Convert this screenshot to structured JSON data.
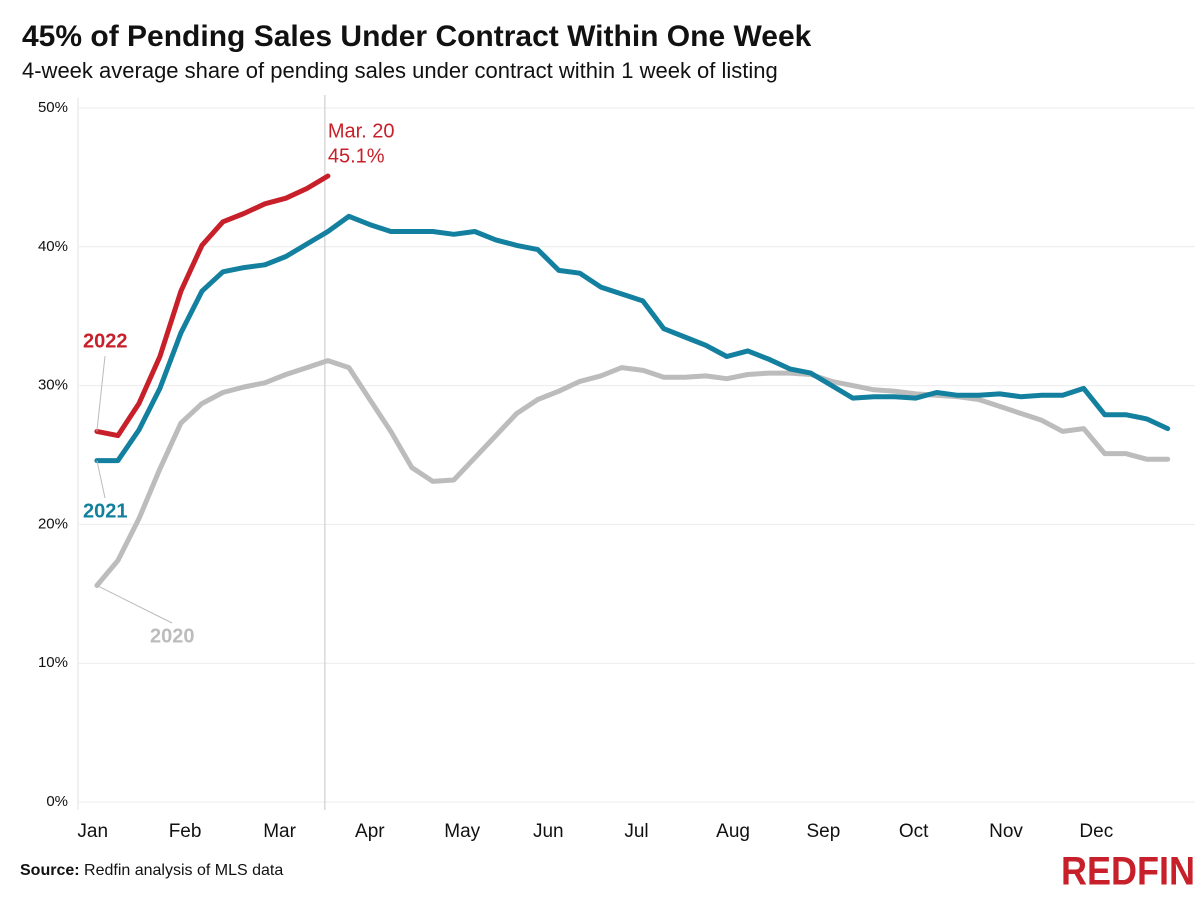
{
  "chart_data": {
    "type": "line",
    "title": "45% of Pending Sales Under Contract Within One Week",
    "subtitle": "4-week average share of pending sales under contract within 1 week of listing",
    "source_label": "Source:",
    "source": "Redfin analysis of MLS data",
    "logo": "REDFIN",
    "annotation": "Mar. 20",
    "x": [
      1,
      2,
      3,
      4,
      5,
      6,
      7,
      8,
      9,
      10,
      11,
      12,
      13,
      14,
      15,
      16,
      17,
      18,
      19,
      20,
      21,
      22,
      23,
      24,
      25,
      26,
      27,
      28,
      29,
      30,
      31,
      32,
      33,
      34,
      35,
      36,
      37,
      38,
      39,
      40,
      41,
      42,
      43,
      44,
      45,
      46,
      47,
      48,
      49,
      50,
      51,
      52
    ],
    "xlim": [
      0.1,
      53.3
    ],
    "xticks": [
      {
        "value": 0.8,
        "label": "Jan"
      },
      {
        "value": 5.2,
        "label": "Feb"
      },
      {
        "value": 9.7,
        "label": "Mar"
      },
      {
        "value": 14.0,
        "label": "Apr"
      },
      {
        "value": 18.4,
        "label": "May"
      },
      {
        "value": 22.5,
        "label": "Jun"
      },
      {
        "value": 26.7,
        "label": "Jul"
      },
      {
        "value": 31.3,
        "label": "Aug"
      },
      {
        "value": 35.6,
        "label": "Sep"
      },
      {
        "value": 39.9,
        "label": "Oct"
      },
      {
        "value": 44.3,
        "label": "Nov"
      },
      {
        "value": 48.6,
        "label": "Dec"
      }
    ],
    "ylim": [
      0,
      50
    ],
    "yticks": [
      {
        "value": 0,
        "label": "0%"
      },
      {
        "value": 10,
        "label": "10%"
      },
      {
        "value": 20,
        "label": "20%"
      },
      {
        "value": 30,
        "label": "30%"
      },
      {
        "value": 40,
        "label": "40%"
      },
      {
        "value": 50,
        "label": "50%"
      }
    ],
    "grid": true,
    "series": [
      {
        "name": "2022",
        "color": "#c8202a",
        "values": [
          26.7,
          26.4,
          28.7,
          32.1,
          36.8,
          40.1,
          41.8,
          42.4,
          43.1,
          43.5,
          44.2,
          45.1,
          null,
          null,
          null,
          null,
          null,
          null,
          null,
          null,
          null,
          null,
          null,
          null,
          null,
          null,
          null,
          null,
          null,
          null,
          null,
          null,
          null,
          null,
          null,
          null,
          null,
          null,
          null,
          null,
          null,
          null,
          null,
          null,
          null,
          null,
          null,
          null,
          null,
          null,
          null,
          null
        ],
        "value_labels": [
          null,
          null,
          null,
          null,
          null,
          null,
          null,
          null,
          null,
          null,
          null,
          "45.1%",
          null,
          null,
          null,
          null,
          null,
          null,
          null,
          null,
          null,
          null,
          null,
          null,
          null,
          null,
          null,
          null,
          null,
          null,
          null,
          null,
          null,
          null,
          null,
          null,
          null,
          null,
          null,
          null,
          null,
          null,
          null,
          null,
          null,
          null,
          null,
          null,
          null,
          null,
          null,
          null
        ]
      },
      {
        "name": "2021",
        "color": "#13809f",
        "values": [
          24.6,
          24.6,
          26.8,
          29.8,
          33.8,
          36.8,
          38.2,
          38.5,
          38.7,
          39.3,
          40.2,
          41.1,
          42.2,
          41.6,
          41.1,
          41.1,
          41.1,
          40.9,
          41.1,
          40.5,
          40.1,
          39.8,
          38.3,
          38.1,
          37.1,
          36.6,
          36.1,
          34.1,
          33.5,
          32.9,
          32.1,
          32.5,
          31.9,
          31.2,
          30.9,
          30.0,
          29.1,
          29.2,
          29.2,
          29.1,
          29.5,
          29.3,
          29.3,
          29.4,
          29.2,
          29.3,
          29.3,
          29.8,
          27.9,
          27.9,
          27.6,
          26.9
        ]
      },
      {
        "name": "2020",
        "color": "#bcbcbc",
        "values": [
          15.6,
          17.4,
          20.4,
          24.0,
          27.3,
          28.7,
          29.5,
          29.9,
          30.2,
          30.8,
          31.3,
          31.8,
          31.3,
          29.0,
          26.7,
          24.1,
          23.1,
          23.2,
          24.8,
          26.4,
          28.0,
          29.0,
          29.6,
          30.3,
          30.7,
          31.3,
          31.1,
          30.6,
          30.6,
          30.7,
          30.5,
          30.8,
          30.9,
          30.9,
          30.8,
          30.3,
          30.0,
          29.7,
          29.6,
          29.4,
          29.3,
          29.2,
          29.0,
          28.5,
          28.0,
          27.5,
          26.7,
          26.9,
          25.1,
          25.1,
          24.7,
          24.7
        ]
      }
    ]
  }
}
